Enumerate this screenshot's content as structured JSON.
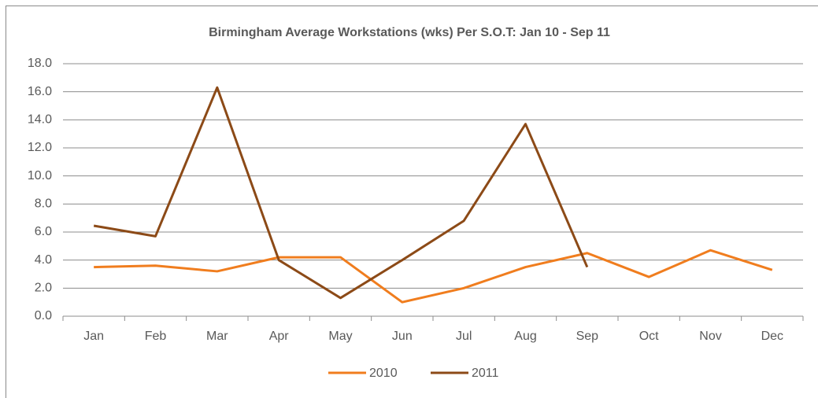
{
  "chart_data": {
    "type": "line",
    "title": "Birmingham  Average Workstations (wks) Per S.O.T: Jan 10 - Sep 11",
    "categories": [
      "Jan",
      "Feb",
      "Mar",
      "Apr",
      "May",
      "Jun",
      "Jul",
      "Aug",
      "Sep",
      "Oct",
      "Nov",
      "Dec"
    ],
    "series": [
      {
        "name": "2010",
        "color": "#f07d1e",
        "values": [
          3.5,
          3.6,
          3.2,
          4.2,
          4.2,
          1.0,
          2.0,
          3.5,
          4.5,
          2.8,
          4.7,
          3.3
        ]
      },
      {
        "name": "2011",
        "color": "#8c4a17",
        "values": [
          6.45,
          5.7,
          16.3,
          4.0,
          1.3,
          4.0,
          6.8,
          13.7,
          3.5,
          null,
          null,
          null
        ]
      }
    ],
    "ylim": [
      0,
      18
    ],
    "yticks": [
      {
        "value": 0,
        "label": "0.0"
      },
      {
        "value": 2,
        "label": "2.0"
      },
      {
        "value": 4,
        "label": "4.0"
      },
      {
        "value": 6,
        "label": "6.0"
      },
      {
        "value": 8,
        "label": "8.0"
      },
      {
        "value": 10,
        "label": "10.0"
      },
      {
        "value": 12,
        "label": "12.0"
      },
      {
        "value": 14,
        "label": "14.0"
      },
      {
        "value": 16,
        "label": "16.0"
      },
      {
        "value": 18,
        "label": "18.0"
      }
    ],
    "grid": true,
    "legend": "bottom"
  }
}
